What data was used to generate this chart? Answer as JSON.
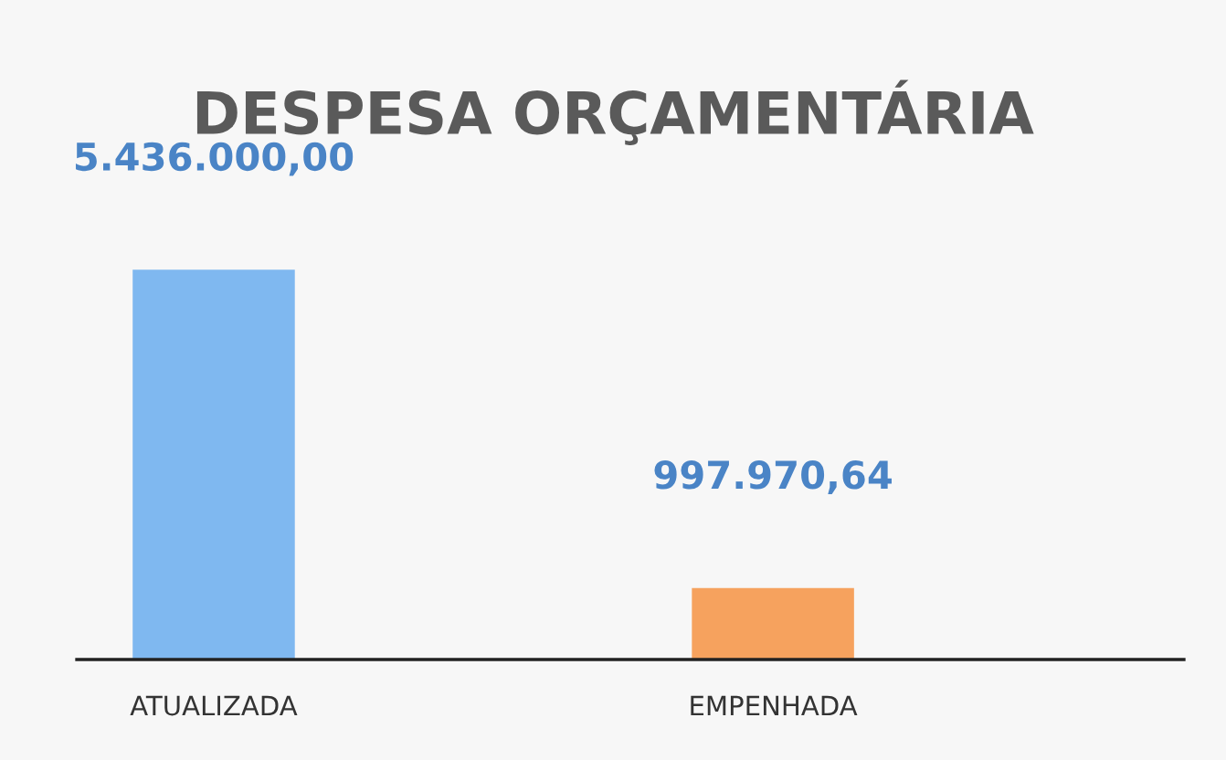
{
  "chart_data": {
    "type": "bar",
    "title": "DESPESA ORÇAMENTÁRIA",
    "categories": [
      "ATUALIZADA",
      "EMPENHADA"
    ],
    "values": [
      5436000.0,
      997970.64
    ],
    "colors": [
      "#7fb8f0",
      "#f6a25e"
    ],
    "value_labels": [
      "5.436.000,00",
      "997.970,64"
    ],
    "grid": false
  }
}
